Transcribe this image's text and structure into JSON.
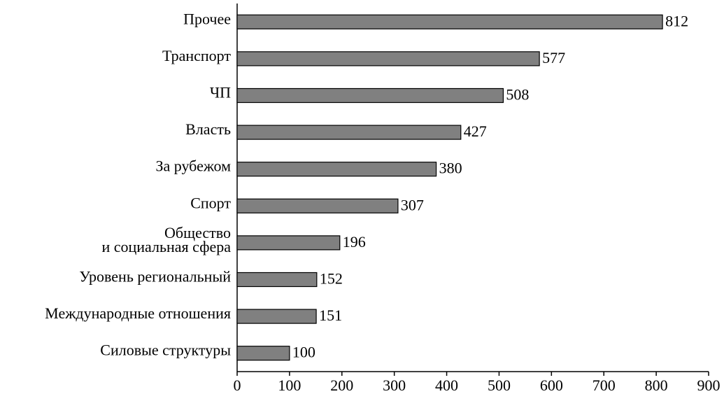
{
  "chart_data": {
    "type": "bar",
    "orientation": "horizontal",
    "categories": [
      "Прочее",
      "Транспорт",
      "ЧП",
      "Власть",
      "За рубежом",
      "Спорт",
      "Общество\nи социальная сфера",
      "Уровень региональный",
      "Международные отношения",
      "Силовые структуры"
    ],
    "values": [
      812,
      577,
      508,
      427,
      380,
      307,
      196,
      152,
      151,
      100
    ],
    "color": "#808080",
    "xlim": [
      0,
      900
    ],
    "xticks": [
      0,
      100,
      200,
      300,
      400,
      500,
      600,
      700,
      800,
      900
    ]
  }
}
